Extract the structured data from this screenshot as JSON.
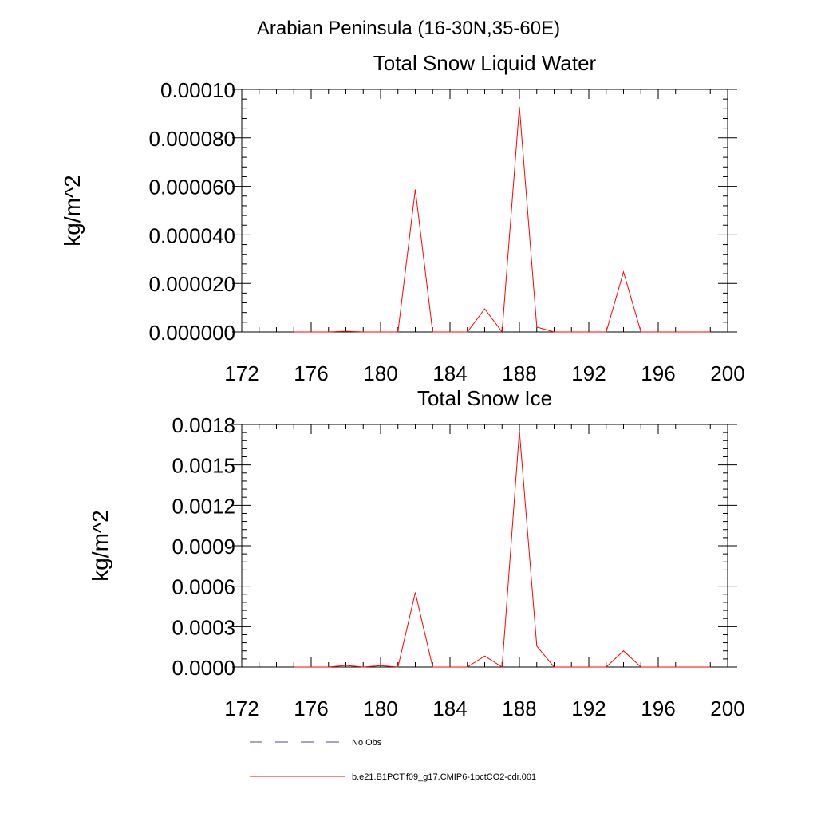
{
  "figure": {
    "title": "Arabian Peninsula (16-30N,35-60E)"
  },
  "chart_data": [
    {
      "type": "line",
      "title": "Total Snow Liquid Water",
      "xlabel": "",
      "ylabel": "kg/m^2",
      "xlim": [
        172,
        200
      ],
      "ylim": [
        0,
        0.0001
      ],
      "xticks": [
        172,
        176,
        180,
        184,
        188,
        192,
        196,
        200
      ],
      "xtick_labels": [
        "172",
        "176",
        "180",
        "184",
        "188",
        "192",
        "196",
        "200"
      ],
      "yticks": [
        0,
        2e-05,
        4e-05,
        6e-05,
        8e-05,
        0.0001
      ],
      "ytick_labels": [
        "0.000000",
        "0.000020",
        "0.000040",
        "0.000060",
        "0.000080",
        "0.00010"
      ],
      "x": [
        175,
        176,
        177,
        178,
        179,
        180,
        181,
        182,
        183,
        184,
        185,
        186,
        187,
        188,
        189,
        190,
        191,
        192,
        193,
        194,
        195,
        196,
        197,
        198,
        199
      ],
      "series": [
        {
          "name": "b.e21.B1PCT.f09_g17.CMIP6-1pctCO2-cdr.001",
          "color": "#ff0000",
          "values": [
            0,
            0,
            0,
            3e-07,
            0,
            0,
            0,
            5.87e-05,
            0,
            0,
            0,
            9.5e-06,
            0,
            9.28e-05,
            2e-06,
            0,
            0,
            0,
            0,
            2.47e-05,
            0,
            0,
            0,
            0,
            0
          ]
        }
      ]
    },
    {
      "type": "line",
      "title": "Total Snow Ice",
      "xlabel": "",
      "ylabel": "kg/m^2",
      "xlim": [
        172,
        200
      ],
      "ylim": [
        0,
        0.0018
      ],
      "xticks": [
        172,
        176,
        180,
        184,
        188,
        192,
        196,
        200
      ],
      "xtick_labels": [
        "172",
        "176",
        "180",
        "184",
        "188",
        "192",
        "196",
        "200"
      ],
      "yticks": [
        0,
        0.0003,
        0.0006,
        0.0009,
        0.0012,
        0.0015,
        0.0018
      ],
      "ytick_labels": [
        "0.0000",
        "0.0003",
        "0.0006",
        "0.0009",
        "0.0012",
        "0.0015",
        "0.0018"
      ],
      "x": [
        175,
        176,
        177,
        178,
        179,
        180,
        181,
        182,
        183,
        184,
        185,
        186,
        187,
        188,
        189,
        190,
        191,
        192,
        193,
        194,
        195,
        196,
        197,
        198,
        199
      ],
      "series": [
        {
          "name": "b.e21.B1PCT.f09_g17.CMIP6-1pctCO2-cdr.001",
          "color": "#ff0000",
          "values": [
            0,
            0,
            0,
            1.2e-05,
            0,
            1e-05,
            0,
            0.000553,
            0,
            0,
            0,
            8.2e-05,
            0,
            0.001752,
            0.000155,
            0,
            0,
            0,
            0,
            0.00012,
            0,
            0,
            0,
            0,
            0
          ]
        }
      ]
    }
  ],
  "legend": {
    "items": [
      {
        "label": "No Obs",
        "style": "dashed",
        "color": "#4a5078"
      },
      {
        "label": "b.e21.B1PCT.f09_g17.CMIP6-1pctCO2-cdr.001",
        "style": "solid",
        "color": "#ff0000"
      }
    ]
  }
}
